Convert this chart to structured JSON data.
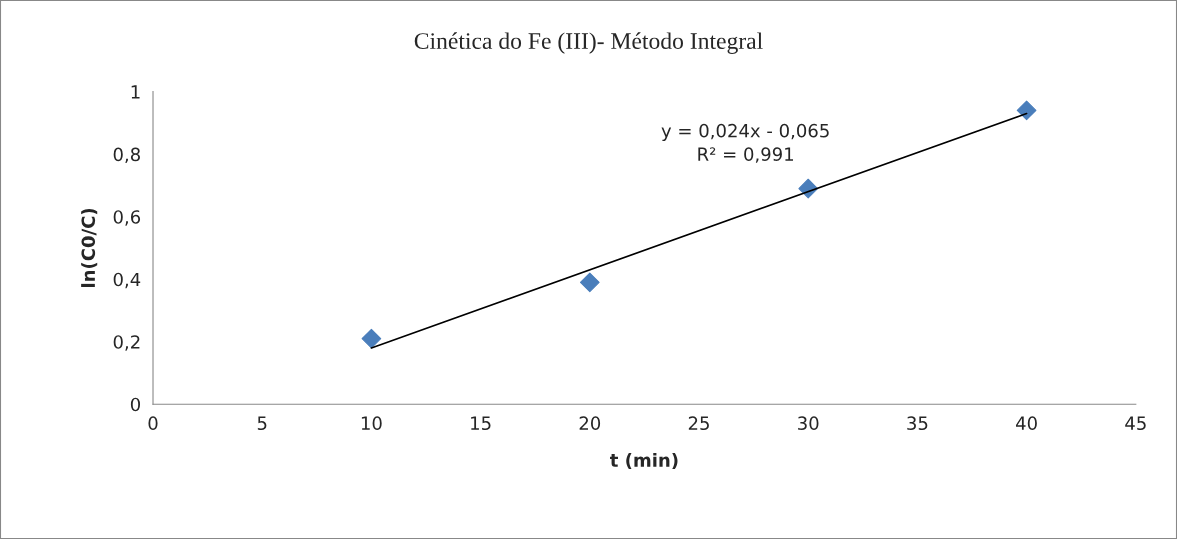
{
  "chart_data": {
    "type": "scatter",
    "title": "Cinética do Fe (III)- Método Integral",
    "xlabel": "t (min)",
    "ylabel": "ln(C0/C)",
    "series": [
      {
        "x": [
          10,
          20,
          30,
          40
        ],
        "values": [
          0.21,
          0.39,
          0.69,
          0.94
        ],
        "color": "#4a7ebb",
        "marker": "diamond"
      },
      {
        "type": "line",
        "x": [
          10,
          40
        ],
        "values": [
          0.18,
          0.93
        ],
        "color": "#000000",
        "marker": "none",
        "line_style": "solid"
      }
    ],
    "annotations": [
      "y = 0,024x - 0,065",
      "R² = 0,991"
    ],
    "xlim": [
      0,
      45
    ],
    "xticks": [
      0,
      5,
      10,
      15,
      20,
      25,
      30,
      35,
      40,
      45
    ],
    "ylim": [
      0,
      1
    ],
    "yticks": [
      0,
      {
        "value": 0.2,
        "label": "0,2"
      },
      {
        "value": 0.4,
        "label": "0,4"
      },
      {
        "value": 0.6,
        "label": "0,6"
      },
      {
        "value": 0.8,
        "label": "0,8"
      },
      1
    ],
    "grid": false,
    "legend": false
  }
}
